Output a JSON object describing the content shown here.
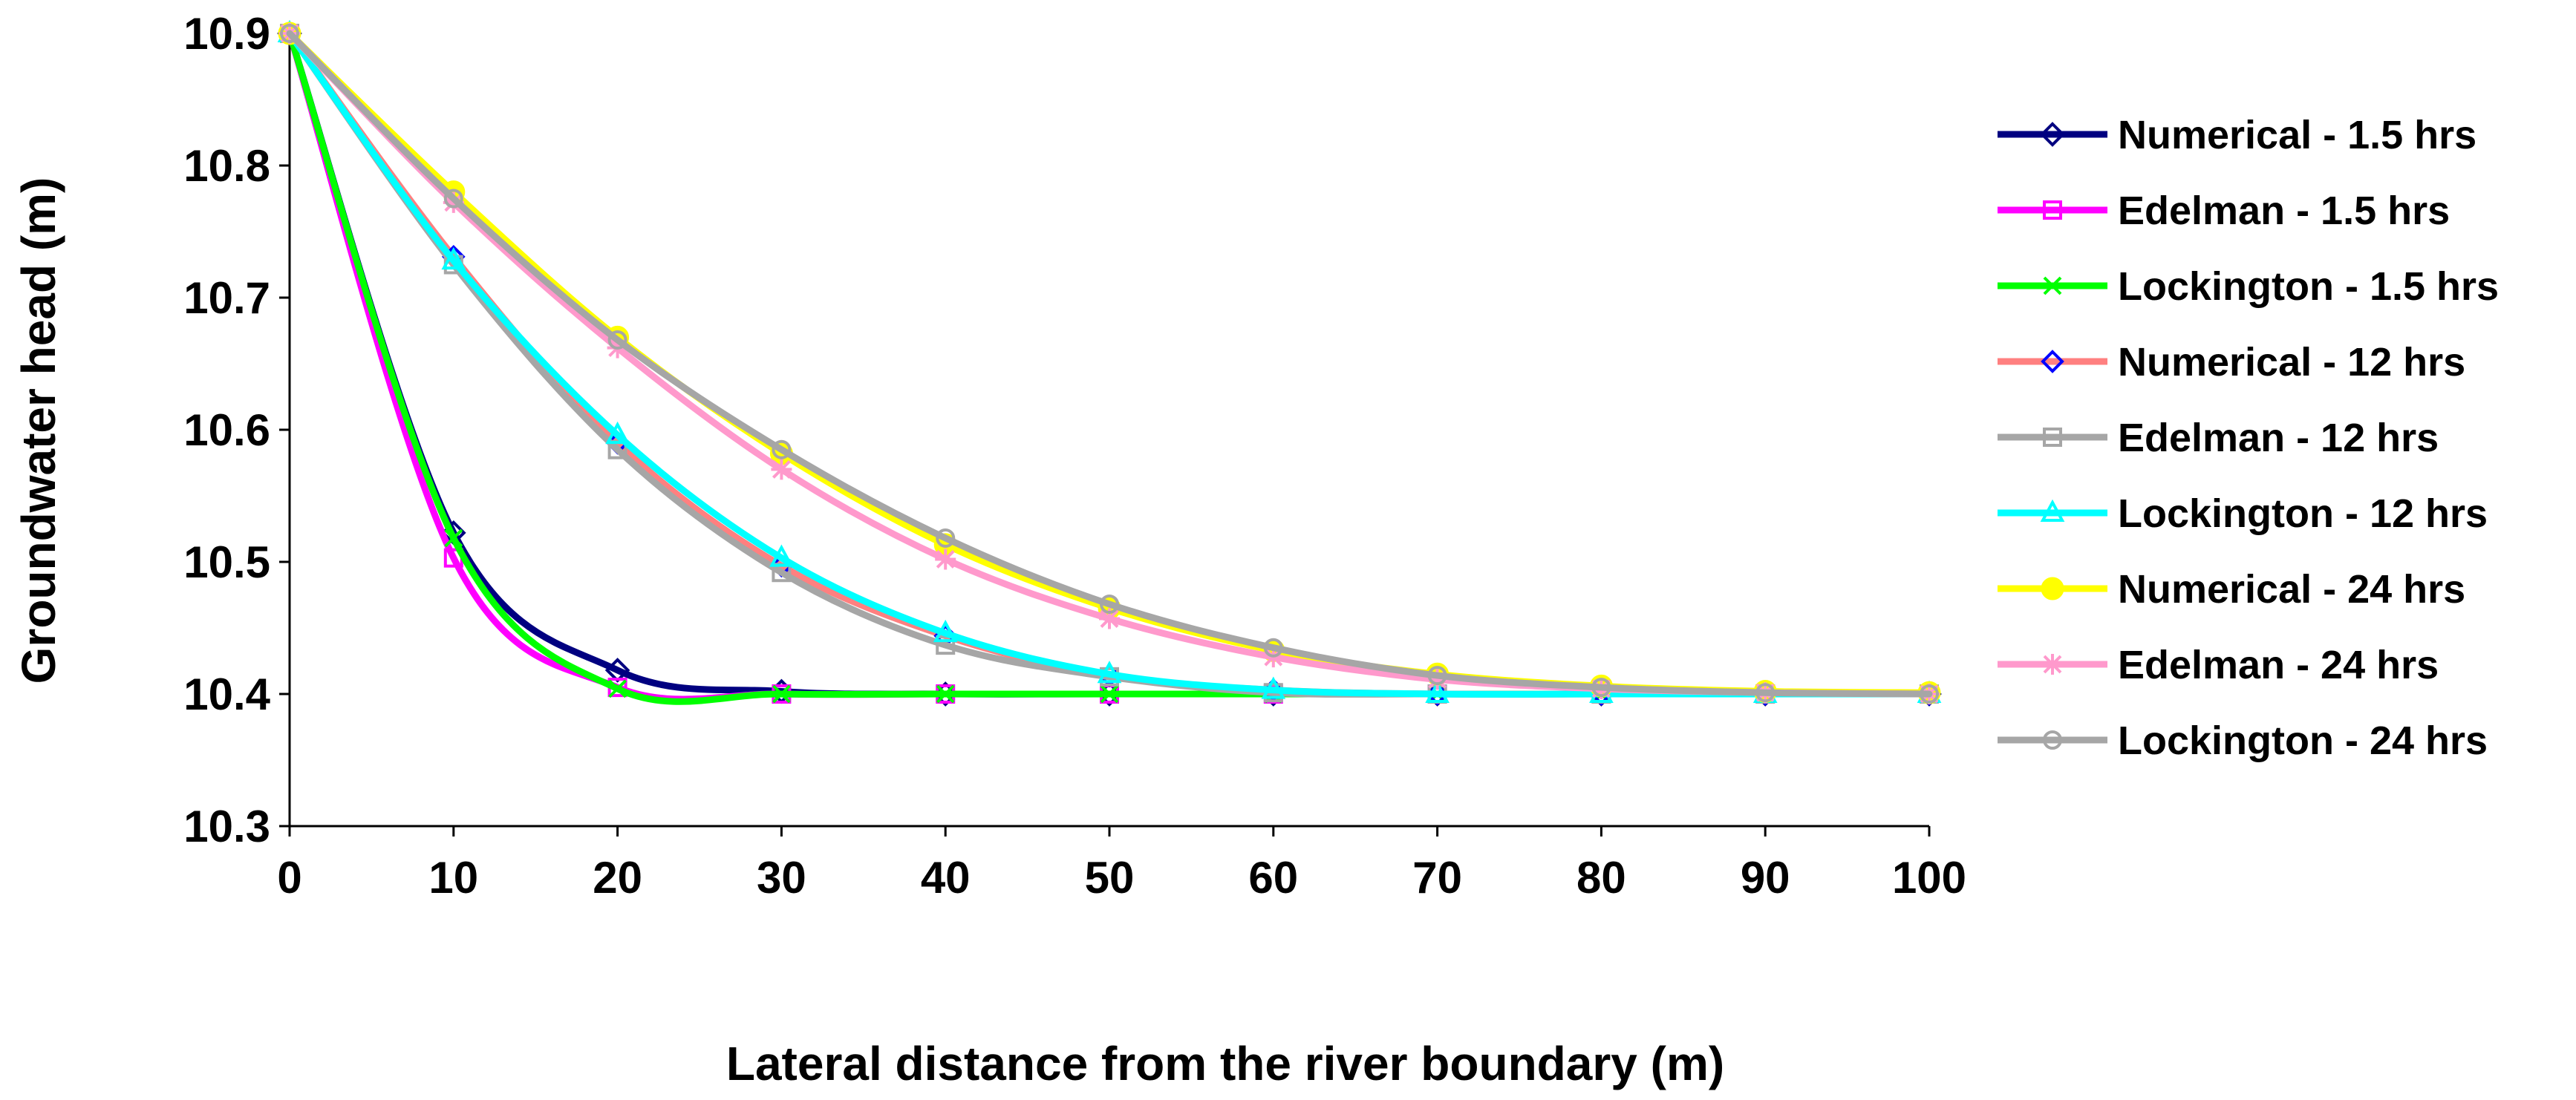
{
  "chart_data": {
    "type": "line",
    "title": "",
    "xlabel": "Lateral distance from the river boundary (m)",
    "ylabel": "Groundwater head (m)",
    "xlim": [
      0,
      100
    ],
    "ylim": [
      10.3,
      10.9
    ],
    "grid": false,
    "legend_position": "right",
    "x_ticks": [
      "0",
      "10",
      "20",
      "30",
      "40",
      "50",
      "60",
      "70",
      "80",
      "90",
      "100"
    ],
    "y_ticks": [
      "10.3",
      "10.4",
      "10.5",
      "10.6",
      "10.7",
      "10.8",
      "10.9"
    ],
    "x": [
      0,
      10,
      20,
      30,
      40,
      50,
      60,
      70,
      80,
      90,
      100
    ],
    "series": [
      {
        "name": "Numerical - 1.5 hrs",
        "color": "#000080",
        "marker": "diamond-open",
        "values": [
          10.9,
          10.522,
          10.418,
          10.402,
          10.4,
          10.4,
          10.4,
          10.4,
          10.4,
          10.4,
          10.4
        ]
      },
      {
        "name": "Edelman - 1.5 hrs",
        "color": "#FF00FF",
        "marker": "square-open",
        "values": [
          10.9,
          10.503,
          10.405,
          10.4,
          10.4,
          10.4,
          10.4,
          10.4,
          10.4,
          10.4,
          10.4
        ]
      },
      {
        "name": "Lockington - 1.5 hrs",
        "color": "#00FF00",
        "marker": "x",
        "values": [
          10.9,
          10.518,
          10.404,
          10.4,
          10.4,
          10.4,
          10.4,
          10.4,
          10.4,
          10.4,
          10.4
        ]
      },
      {
        "name": "Numerical - 12 hrs",
        "color": "#FF8080",
        "marker": "diamond-blue",
        "values": [
          10.9,
          10.731,
          10.59,
          10.497,
          10.444,
          10.414,
          10.403,
          10.4,
          10.4,
          10.4,
          10.4
        ]
      },
      {
        "name": "Edelman - 12 hrs",
        "color": "#A6A6A6",
        "marker": "square-open",
        "values": [
          10.9,
          10.725,
          10.585,
          10.492,
          10.437,
          10.413,
          10.401,
          10.4,
          10.4,
          10.4,
          10.4
        ]
      },
      {
        "name": "Lockington - 12 hrs",
        "color": "#00FFFF",
        "marker": "triangle-open",
        "values": [
          10.9,
          10.728,
          10.596,
          10.503,
          10.446,
          10.415,
          10.403,
          10.4,
          10.4,
          10.4,
          10.4
        ]
      },
      {
        "name": "Numerical - 24 hrs",
        "color": "#FFFF00",
        "marker": "circle-filled",
        "values": [
          10.9,
          10.78,
          10.67,
          10.582,
          10.513,
          10.465,
          10.433,
          10.415,
          10.406,
          10.402,
          10.401
        ]
      },
      {
        "name": "Edelman - 24 hrs",
        "color": "#FF99CC",
        "marker": "star",
        "values": [
          10.9,
          10.772,
          10.662,
          10.57,
          10.502,
          10.457,
          10.428,
          10.411,
          10.404,
          10.401,
          10.4
        ]
      },
      {
        "name": "Lockington - 24 hrs",
        "color": "#A6A6A6",
        "marker": "circle-open",
        "values": [
          10.9,
          10.775,
          10.668,
          10.585,
          10.518,
          10.468,
          10.435,
          10.414,
          10.405,
          10.401,
          10.4
        ]
      }
    ]
  }
}
